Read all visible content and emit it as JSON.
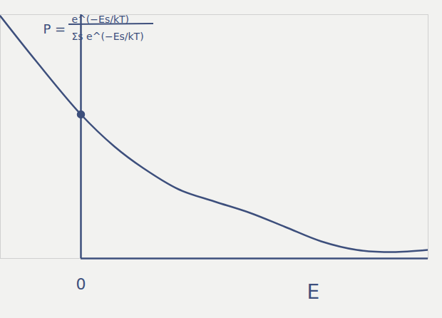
{
  "chart_data": {
    "type": "line",
    "xlabel": "E",
    "annotation": {
      "lhs": "P =",
      "numerator": "e^(−Es/kT)",
      "denominator": "Σs e^(−Es/kT)"
    },
    "series": [
      {
        "type": "line",
        "color": "#3d4f7c",
        "x": [
          -1.13,
          -0.63,
          0,
          0.47,
          0.87,
          1.37,
          1.87,
          2.37,
          2.87,
          3.37,
          3.87,
          4.37,
          4.87
        ],
        "values": [
          3.4,
          2.77,
          2.02,
          1.57,
          1.27,
          0.97,
          0.8,
          0.64,
          0.44,
          0.24,
          0.12,
          0.09,
          0.12
        ]
      },
      {
        "type": "scatter",
        "color": "#3d4f7c",
        "marker": "circle",
        "x": [
          0
        ],
        "values": [
          2.02
        ]
      }
    ],
    "xlim": [
      -1.13,
      4.87
    ],
    "ylim": [
      0,
      3.42
    ],
    "xticks": [
      0
    ],
    "yticks": [],
    "tick_labels": "x",
    "grid": false
  }
}
